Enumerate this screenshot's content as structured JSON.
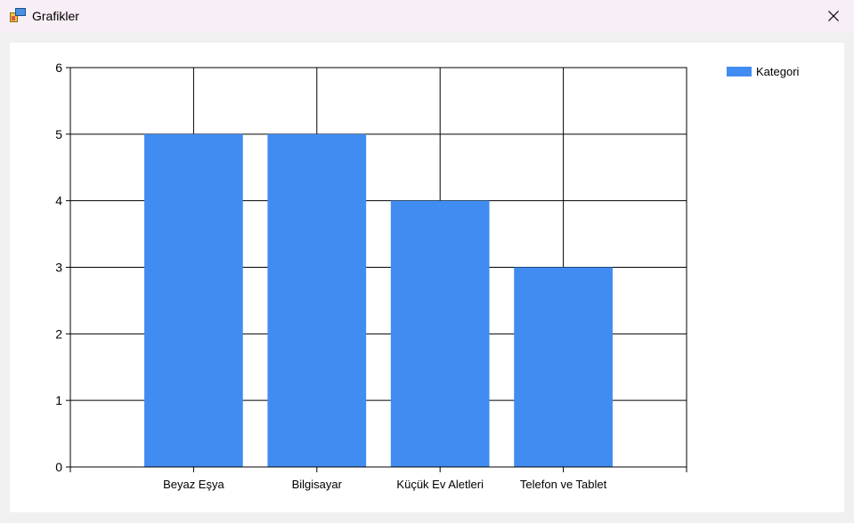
{
  "window": {
    "title": "Grafikler",
    "icon": "chart-app-icon",
    "close_icon": "close-icon"
  },
  "legend": {
    "label": "Kategori",
    "color": "#418cf0"
  },
  "chart_data": {
    "type": "bar",
    "categories": [
      "Beyaz Eşya",
      "Bilgisayar",
      "Küçük Ev Aletleri",
      "Telefon ve Tablet"
    ],
    "series": [
      {
        "name": "Kategori",
        "values": [
          5,
          5,
          4,
          3
        ],
        "color": "#418cf0"
      }
    ],
    "title": "",
    "xlabel": "",
    "ylabel": "",
    "ylim": [
      0,
      6
    ],
    "yticks": [
      0,
      1,
      2,
      3,
      4,
      5,
      6
    ],
    "grid": true,
    "legend_position": "top-right"
  }
}
